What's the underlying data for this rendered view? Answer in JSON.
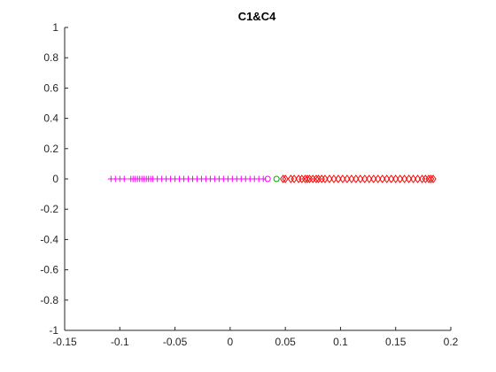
{
  "chart_data": {
    "type": "scatter",
    "title": "C1&C4",
    "xlabel": "",
    "ylabel": "",
    "xlim": [
      -0.15,
      0.2
    ],
    "ylim": [
      -1,
      1
    ],
    "grid": false,
    "xticks": [
      "-0.15",
      "-0.1",
      "-0.05",
      "0",
      "0.05",
      "0.1",
      "0.15",
      "0.2"
    ],
    "yticks": [
      "1",
      "0.8",
      "0.6",
      "0.4",
      "0.2",
      "0",
      "-0.2",
      "-0.4",
      "-0.6",
      "-0.8",
      "-1"
    ],
    "series": [
      {
        "marker": "plus",
        "color": "#ff00ff",
        "x": [
          -0.108,
          -0.104,
          -0.1,
          -0.096,
          -0.09,
          -0.088,
          -0.086,
          -0.084,
          -0.082,
          -0.08,
          -0.078,
          -0.076,
          -0.074,
          -0.072,
          -0.07,
          -0.066,
          -0.062,
          -0.058,
          -0.054,
          -0.05,
          -0.046,
          -0.042,
          -0.038,
          -0.034,
          -0.03,
          -0.026,
          -0.022,
          -0.018,
          -0.014,
          -0.01,
          -0.006,
          -0.002,
          0.002,
          0.006,
          0.01,
          0.014,
          0.018,
          0.022,
          0.026,
          0.03
        ],
        "y": [
          0,
          0,
          0,
          0,
          0,
          0,
          0,
          0,
          0,
          0,
          0,
          0,
          0,
          0,
          0,
          0,
          0,
          0,
          0,
          0,
          0,
          0,
          0,
          0,
          0,
          0,
          0,
          0,
          0,
          0,
          0,
          0,
          0,
          0,
          0,
          0,
          0,
          0,
          0,
          0
        ]
      },
      {
        "marker": "circle",
        "color": "#ff00ff",
        "x": [
          0.034
        ],
        "y": [
          0
        ]
      },
      {
        "marker": "circle",
        "color": "#00aa00",
        "x": [
          0.042
        ],
        "y": [
          0
        ]
      },
      {
        "marker": "diamond",
        "color": "#ff0000",
        "x": [
          0.048,
          0.05,
          0.055,
          0.058,
          0.062,
          0.065,
          0.068,
          0.07,
          0.072,
          0.075,
          0.078,
          0.08,
          0.083,
          0.086,
          0.09,
          0.094,
          0.098,
          0.102,
          0.106,
          0.11,
          0.114,
          0.118,
          0.122,
          0.126,
          0.13,
          0.134,
          0.138,
          0.142,
          0.146,
          0.15,
          0.154,
          0.158,
          0.162,
          0.166,
          0.17,
          0.174,
          0.177,
          0.18,
          0.182,
          0.184
        ],
        "y": [
          0,
          0,
          0,
          0,
          0,
          0,
          0,
          0,
          0,
          0,
          0,
          0,
          0,
          0,
          0,
          0,
          0,
          0,
          0,
          0,
          0,
          0,
          0,
          0,
          0,
          0,
          0,
          0,
          0,
          0,
          0,
          0,
          0,
          0,
          0,
          0,
          0,
          0,
          0,
          0
        ]
      }
    ]
  }
}
